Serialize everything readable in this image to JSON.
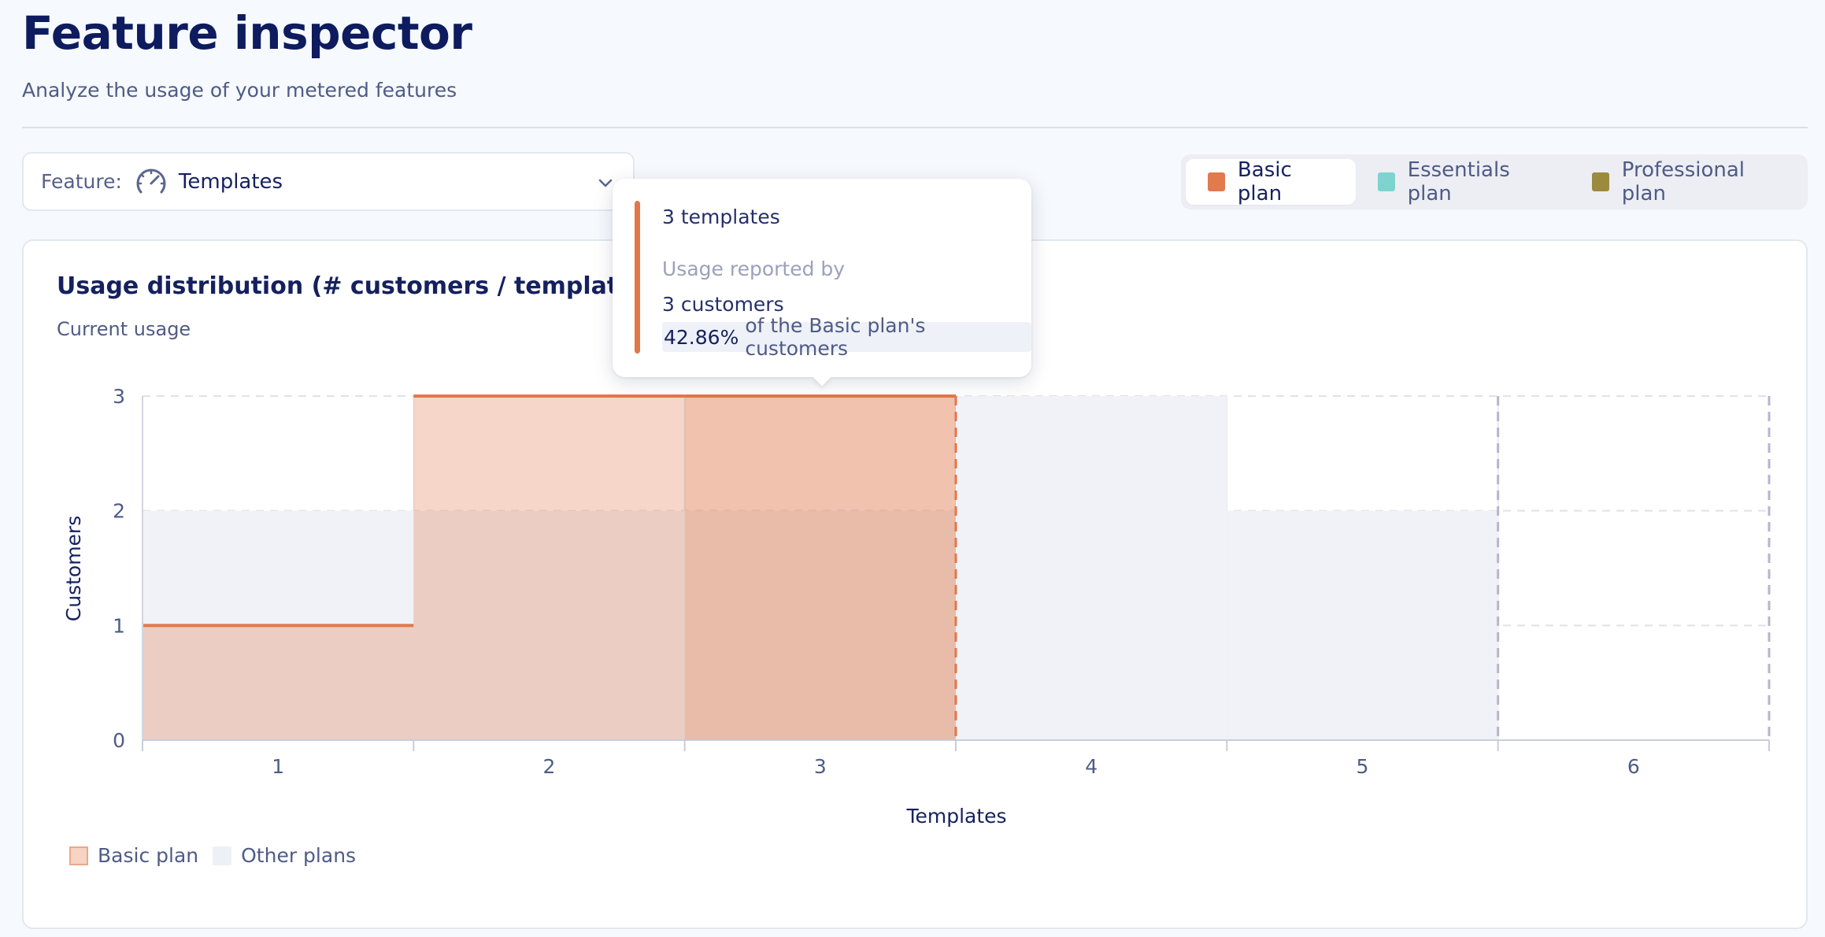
{
  "header": {
    "title": "Feature inspector",
    "subtitle": "Analyze the usage of your metered features"
  },
  "feature_select": {
    "label": "Feature:",
    "icon": "gauge-icon",
    "value": "Templates"
  },
  "plan_tabs": [
    {
      "label": "Basic plan",
      "color": "#e17a4c",
      "active": true
    },
    {
      "label": "Essentials plan",
      "color": "#7fd3cf",
      "active": false
    },
    {
      "label": "Professional plan",
      "color": "#9c8b3e",
      "active": false
    }
  ],
  "chart_card": {
    "title": "Usage distribution (# customers / templates)",
    "subtitle": "Current usage"
  },
  "tooltip": {
    "line1": "3 templates",
    "line2": "Usage reported by",
    "line3": "3 customers",
    "percent": "42.86%",
    "line4_rest": "of the Basic plan's customers"
  },
  "legend": [
    {
      "label": "Basic plan",
      "color": "#f6d3c3"
    },
    {
      "label": "Other plans",
      "color": "#f0f2f8"
    }
  ],
  "chart_data": {
    "type": "bar",
    "title": "Usage distribution (# customers / templates)",
    "subtitle": "Current usage",
    "xlabel": "Templates",
    "ylabel": "Customers",
    "categories": [
      "1",
      "2",
      "3",
      "4",
      "5",
      "6"
    ],
    "yticks": [
      0,
      1,
      2,
      3
    ],
    "ylim": [
      0,
      3
    ],
    "grid": true,
    "legend_position": "bottom-left",
    "highlighted_category": "3",
    "series": [
      {
        "name": "Basic plan",
        "color": "#e1784a",
        "values": [
          1,
          3,
          3,
          0,
          0,
          0
        ]
      },
      {
        "name": "Other plans",
        "color": "#f0f2f8",
        "values": [
          2,
          2,
          2,
          3,
          2,
          0
        ]
      }
    ]
  }
}
